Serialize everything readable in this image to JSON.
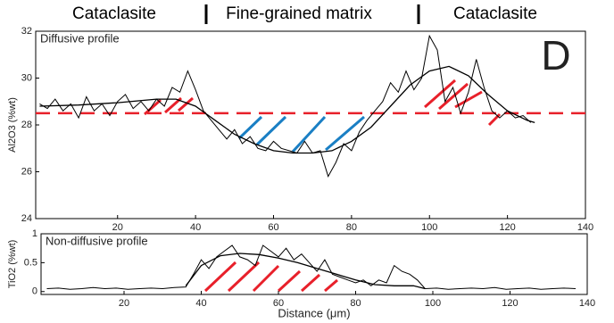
{
  "header": {
    "left": "Cataclasite",
    "middle": "Fine-grained matrix",
    "right": "Cataclasite",
    "panel": "D"
  },
  "chart_data": [
    {
      "type": "line",
      "annotation": "Diffusive profile",
      "ylabel": "Al2O3 (%wt)",
      "xlim": [
        -1,
        140
      ],
      "xticks": [
        20,
        40,
        60,
        80,
        100,
        120,
        140
      ],
      "ylim": [
        24,
        32
      ],
      "yticks": [
        24,
        26,
        28,
        30,
        32
      ],
      "reference_lines": [
        28.5
      ],
      "reference_color": "#e8202a",
      "series": [
        {
          "color": "#000000",
          "x": [
            0,
            2,
            4,
            6,
            8,
            10,
            12,
            14,
            16,
            18,
            20,
            22,
            24,
            26,
            28,
            30,
            32,
            34,
            36,
            38,
            40,
            42,
            44,
            46,
            48,
            50,
            52,
            54,
            56,
            58,
            60,
            62,
            64,
            66,
            68,
            70,
            72,
            74,
            76,
            78,
            80,
            82,
            84,
            86,
            88,
            90,
            92,
            94,
            96,
            98,
            100,
            102,
            104,
            106,
            108,
            110,
            112,
            114,
            116,
            118,
            120,
            122,
            124,
            126
          ],
          "values": [
            28.9,
            28.7,
            29.1,
            28.6,
            28.9,
            28.3,
            29.2,
            28.6,
            28.9,
            28.4,
            29.0,
            29.3,
            28.7,
            29.0,
            28.6,
            29.1,
            28.8,
            29.6,
            29.4,
            30.3,
            29.5,
            28.6,
            28.2,
            27.8,
            27.4,
            27.8,
            27.2,
            27.5,
            27.0,
            26.9,
            27.3,
            27.0,
            26.9,
            26.8,
            27.3,
            26.8,
            26.9,
            25.8,
            26.4,
            27.2,
            26.9,
            27.7,
            28.2,
            28.6,
            29.0,
            29.8,
            29.4,
            30.3,
            29.5,
            30.0,
            31.8,
            31.2,
            29.0,
            29.6,
            28.5,
            29.4,
            30.8,
            29.6,
            28.6,
            28.3,
            28.6,
            28.3,
            28.4,
            28.1
          ]
        },
        {
          "color": "#000000",
          "x": [
            0,
            10,
            20,
            30,
            35,
            40,
            45,
            50,
            55,
            60,
            65,
            70,
            75,
            80,
            85,
            90,
            95,
            100,
            105,
            110,
            115,
            120,
            125,
            127
          ],
          "values": [
            28.8,
            28.85,
            28.95,
            29.1,
            29.1,
            28.8,
            28.2,
            27.6,
            27.2,
            26.9,
            26.8,
            26.8,
            26.9,
            27.3,
            27.9,
            28.8,
            29.7,
            30.3,
            30.5,
            30.1,
            29.3,
            28.6,
            28.2,
            28.1
          ]
        }
      ]
    },
    {
      "type": "line",
      "annotation": "Non-diffusive profile",
      "ylabel": "TiO2 (%wt)",
      "xlabel": "Distance (μm)",
      "xlim": [
        -1.5,
        140
      ],
      "xticks": [
        20,
        40,
        60,
        80,
        100,
        120,
        140
      ],
      "ylim": [
        -0.05,
        1
      ],
      "yticks": [
        0,
        0.5,
        1
      ],
      "series": [
        {
          "color": "#000000",
          "x": [
            0,
            3,
            6,
            9,
            12,
            15,
            18,
            21,
            24,
            27,
            30,
            33,
            36,
            38,
            40,
            42,
            44,
            46,
            48,
            50,
            52,
            54,
            56,
            58,
            60,
            62,
            64,
            66,
            68,
            70,
            72,
            74,
            76,
            78,
            80,
            82,
            84,
            86,
            88,
            90,
            92,
            94,
            96,
            98,
            101,
            104,
            107,
            110,
            113,
            116,
            119,
            122,
            125,
            128,
            131,
            134,
            137
          ],
          "values": [
            0.05,
            0.06,
            0.04,
            0.05,
            0.07,
            0.05,
            0.06,
            0.04,
            0.05,
            0.06,
            0.05,
            0.07,
            0.08,
            0.3,
            0.55,
            0.4,
            0.6,
            0.7,
            0.8,
            0.6,
            0.55,
            0.45,
            0.8,
            0.7,
            0.6,
            0.75,
            0.55,
            0.65,
            0.5,
            0.35,
            0.55,
            0.3,
            0.25,
            0.2,
            0.15,
            0.2,
            0.1,
            0.2,
            0.15,
            0.45,
            0.35,
            0.3,
            0.2,
            0.05,
            0.06,
            0.04,
            0.05,
            0.06,
            0.05,
            0.07,
            0.04,
            0.05,
            0.06,
            0.04,
            0.05,
            0.06,
            0.05
          ]
        },
        {
          "color": "#000000",
          "x": [
            36,
            40,
            45,
            50,
            55,
            60,
            65,
            70,
            75,
            80,
            85,
            90,
            95,
            98
          ],
          "values": [
            0.1,
            0.45,
            0.62,
            0.66,
            0.64,
            0.58,
            0.5,
            0.4,
            0.3,
            0.2,
            0.12,
            0.1,
            0.1,
            0.05
          ]
        }
      ]
    }
  ]
}
